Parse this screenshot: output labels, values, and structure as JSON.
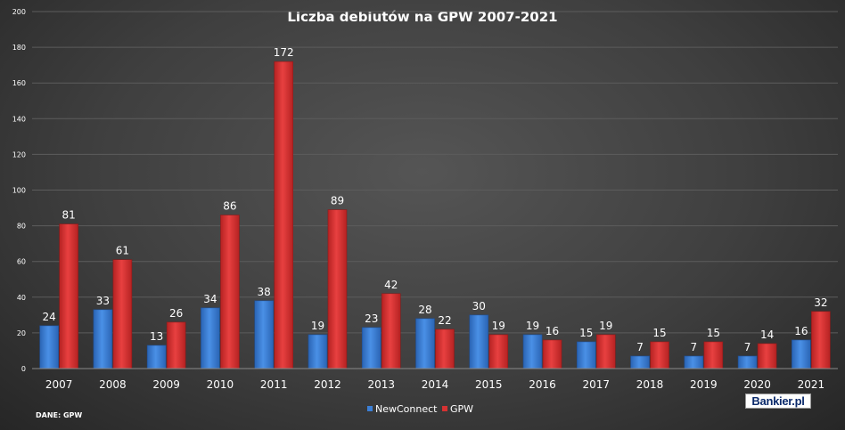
{
  "chart_data": {
    "type": "bar",
    "title": "Liczba debiutów na GPW 2007-2021",
    "categories": [
      "2007",
      "2008",
      "2009",
      "2010",
      "2011",
      "2012",
      "2013",
      "2014",
      "2015",
      "2016",
      "2017",
      "2018",
      "2019",
      "2020",
      "2021"
    ],
    "series": [
      {
        "name": "NewConnect",
        "color": "#3b7fd6",
        "values": [
          24,
          33,
          13,
          34,
          38,
          19,
          23,
          28,
          30,
          19,
          15,
          7,
          7,
          7,
          16
        ]
      },
      {
        "name": "GPW",
        "color": "#d63232",
        "values": [
          81,
          61,
          26,
          86,
          172,
          89,
          42,
          22,
          19,
          16,
          19,
          15,
          15,
          14,
          32
        ]
      }
    ],
    "ylim": [
      0,
      200
    ],
    "yticks": [
      0,
      20,
      40,
      60,
      80,
      100,
      120,
      140,
      160,
      180,
      200
    ],
    "grid": true,
    "legend_position": "bottom-center",
    "source": "DANE: GPW",
    "logo": "Bankier.pl"
  }
}
